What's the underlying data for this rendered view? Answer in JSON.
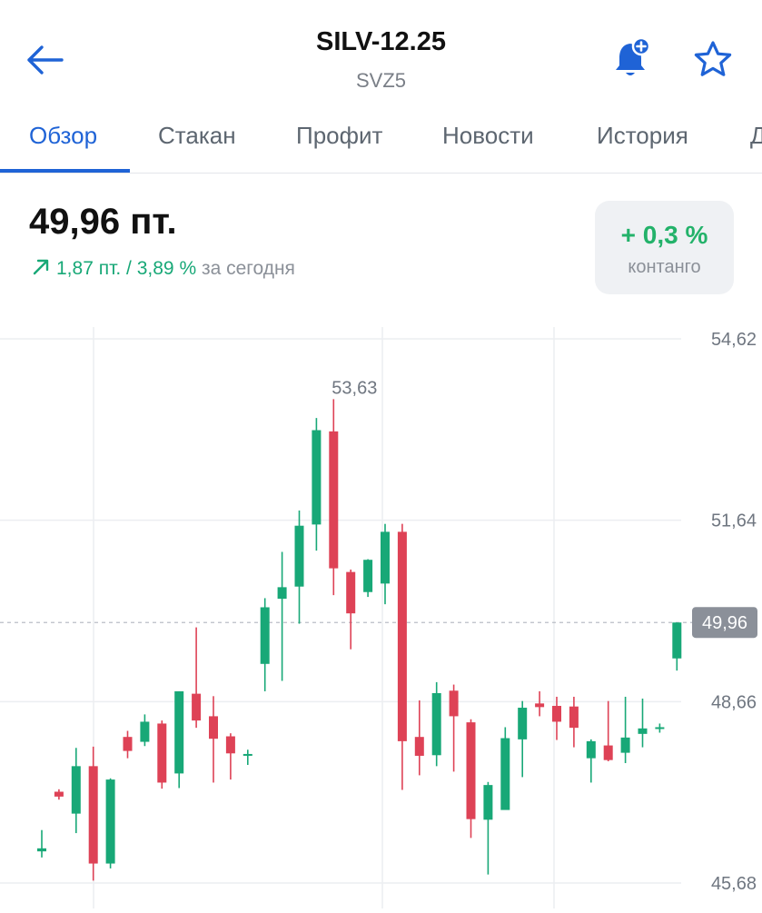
{
  "header": {
    "title": "SILV-12.25",
    "subtitle": "SVZ5",
    "back_icon": "arrow-left-icon",
    "alert_icon": "bell-plus-icon",
    "favorite_icon": "star-icon"
  },
  "tabs": [
    {
      "label": "Обзор",
      "active": true
    },
    {
      "label": "Стакан",
      "active": false
    },
    {
      "label": "Профит",
      "active": false
    },
    {
      "label": "Новости",
      "active": false
    },
    {
      "label": "История",
      "active": false
    },
    {
      "label": "Д",
      "active": false
    }
  ],
  "quote": {
    "price": "49,96 пт.",
    "change_points": "1,87 пт.",
    "separator": "/",
    "change_percent": "3,89 %",
    "period": "за сегодня",
    "direction": "up"
  },
  "contango": {
    "value": "+ 0,3 %",
    "label": "контанго"
  },
  "colors": {
    "accent": "#1f63d6",
    "up": "#18a877",
    "down": "#de4256",
    "contango_value": "#23b26a",
    "muted": "#8b9098"
  },
  "chart_data": {
    "type": "candlestick",
    "y_axis_labels": [
      "54,62",
      "51,64",
      "48,66",
      "45,68"
    ],
    "ylim": [
      45.68,
      54.62
    ],
    "current_price": 49.96,
    "current_price_label": "49,96",
    "max_label": "53,63",
    "grid": true,
    "candles": [
      {
        "o": 46.2,
        "h": 46.55,
        "l": 46.1,
        "c": 46.25
      },
      {
        "o": 47.18,
        "h": 47.22,
        "l": 47.05,
        "c": 47.1
      },
      {
        "o": 46.82,
        "h": 47.9,
        "l": 46.5,
        "c": 47.6
      },
      {
        "o": 47.6,
        "h": 47.92,
        "l": 45.72,
        "c": 46.0
      },
      {
        "o": 46.0,
        "h": 47.4,
        "l": 45.92,
        "c": 47.38
      },
      {
        "o": 48.08,
        "h": 48.18,
        "l": 47.73,
        "c": 47.85
      },
      {
        "o": 48.0,
        "h": 48.45,
        "l": 47.93,
        "c": 48.33
      },
      {
        "o": 48.3,
        "h": 48.35,
        "l": 47.23,
        "c": 47.33
      },
      {
        "o": 47.48,
        "h": 48.83,
        "l": 47.24,
        "c": 48.83
      },
      {
        "o": 48.79,
        "h": 49.88,
        "l": 48.23,
        "c": 48.35
      },
      {
        "o": 48.42,
        "h": 48.75,
        "l": 47.33,
        "c": 48.05
      },
      {
        "o": 48.09,
        "h": 48.14,
        "l": 47.38,
        "c": 47.81
      },
      {
        "o": 47.8,
        "h": 47.87,
        "l": 47.62,
        "c": 47.8
      },
      {
        "o": 49.28,
        "h": 50.36,
        "l": 48.83,
        "c": 50.21
      },
      {
        "o": 50.35,
        "h": 51.12,
        "l": 49.0,
        "c": 50.54
      },
      {
        "o": 50.55,
        "h": 51.8,
        "l": 49.94,
        "c": 51.55
      },
      {
        "o": 51.57,
        "h": 53.32,
        "l": 51.14,
        "c": 53.12
      },
      {
        "o": 53.1,
        "h": 53.63,
        "l": 50.41,
        "c": 50.85
      },
      {
        "o": 50.79,
        "h": 50.83,
        "l": 49.52,
        "c": 50.11
      },
      {
        "o": 50.46,
        "h": 51.0,
        "l": 50.38,
        "c": 50.99
      },
      {
        "o": 50.6,
        "h": 51.58,
        "l": 50.26,
        "c": 51.45
      },
      {
        "o": 51.45,
        "h": 51.58,
        "l": 47.21,
        "c": 48.01
      },
      {
        "o": 48.08,
        "h": 48.68,
        "l": 47.45,
        "c": 47.77
      },
      {
        "o": 47.78,
        "h": 48.98,
        "l": 47.6,
        "c": 48.8
      },
      {
        "o": 48.84,
        "h": 48.94,
        "l": 47.51,
        "c": 48.42
      },
      {
        "o": 48.32,
        "h": 48.37,
        "l": 46.42,
        "c": 46.73
      },
      {
        "o": 46.72,
        "h": 47.34,
        "l": 45.82,
        "c": 47.29
      },
      {
        "o": 46.88,
        "h": 48.24,
        "l": 46.93,
        "c": 48.06
      },
      {
        "o": 48.04,
        "h": 48.67,
        "l": 47.42,
        "c": 48.56
      },
      {
        "o": 48.63,
        "h": 48.83,
        "l": 48.42,
        "c": 48.57
      },
      {
        "o": 48.59,
        "h": 48.74,
        "l": 48.03,
        "c": 48.33
      },
      {
        "o": 48.58,
        "h": 48.74,
        "l": 47.91,
        "c": 48.23
      },
      {
        "o": 47.73,
        "h": 48.04,
        "l": 47.33,
        "c": 48.01
      },
      {
        "o": 47.94,
        "h": 48.67,
        "l": 47.68,
        "c": 47.7
      },
      {
        "o": 47.82,
        "h": 48.74,
        "l": 47.65,
        "c": 48.07
      },
      {
        "o": 48.13,
        "h": 48.71,
        "l": 47.91,
        "c": 48.22
      },
      {
        "o": 48.22,
        "h": 48.3,
        "l": 48.15,
        "c": 48.24
      },
      {
        "o": 49.37,
        "h": 49.96,
        "l": 49.17,
        "c": 49.96
      }
    ]
  }
}
